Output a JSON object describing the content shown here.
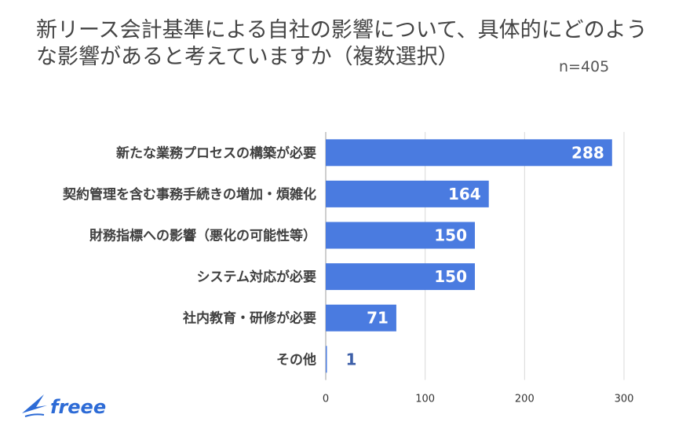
{
  "header": {
    "title": "新リース会計基準による自社の影響について、具体的にどのような影響があると考えていますか（複数選択）",
    "sample": "n=405"
  },
  "brand": {
    "name": "freee",
    "color": "#2d6bd6"
  },
  "colors": {
    "bar": "#4a7be0",
    "grid": "#d9d9d9",
    "value_inside": "#ffffff",
    "value_outside": "#3d5fa8"
  },
  "chart_data": {
    "type": "bar",
    "orientation": "horizontal",
    "categories": [
      "新たな業務プロセスの構築が必要",
      "契約管理を含む事務手続きの増加・煩雑化",
      "財務指標への影響（悪化の可能性等）",
      "システム対応が必要",
      "社内教育・研修が必要",
      "その他"
    ],
    "values": [
      288,
      164,
      150,
      150,
      71,
      1
    ],
    "xlim": [
      0,
      300
    ],
    "xticks": [
      0,
      100,
      200,
      300
    ],
    "grid": true,
    "legend": "none"
  }
}
